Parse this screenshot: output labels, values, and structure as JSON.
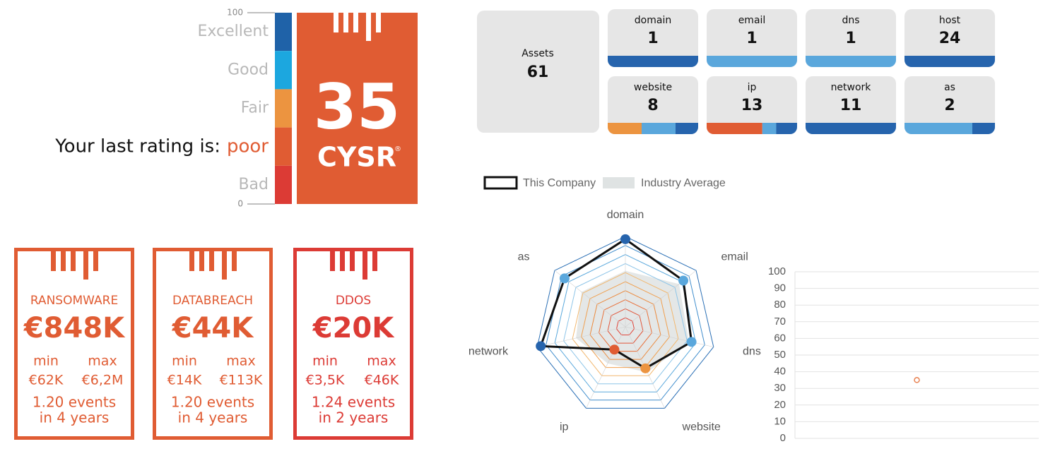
{
  "rating": {
    "prefix": "Your last rating is:",
    "label": "poor",
    "score": 35,
    "brand": "CYSR",
    "mark": "®",
    "color": "#e05c33",
    "scale": {
      "ylim": [
        0,
        100
      ],
      "yticks": [
        0,
        100
      ],
      "bands": [
        {
          "name": "Excellent",
          "color": "#1f62a8"
        },
        {
          "name": "Good",
          "color": "#1ca7df"
        },
        {
          "name": "Fair",
          "color": "#ec9440"
        },
        {
          "name": null,
          "color": "#e05c33"
        },
        {
          "name": "Bad",
          "color": "#dc3b35"
        }
      ]
    }
  },
  "risks": [
    {
      "title": "RANSOMWARE",
      "value": "€848K",
      "min_label": "min",
      "min": "€62K",
      "max_label": "max",
      "max": "€6,2M",
      "events": "1.20 events",
      "period": "in 4 years",
      "color": "#e05c33"
    },
    {
      "title": "DATABREACH",
      "value": "€44K",
      "min_label": "min",
      "min": "€14K",
      "max_label": "max",
      "max": "€113K",
      "events": "1.20 events",
      "period": "in 4 years",
      "color": "#e05c33"
    },
    {
      "title": "DDOS",
      "value": "€20K",
      "min_label": "min",
      "min": "€3,5K",
      "max_label": "max",
      "max": "€46K",
      "events": "1.24 events",
      "period": "in 2 years",
      "color": "#dc3b35"
    }
  ],
  "assets": {
    "total_label": "Assets",
    "total": 61,
    "tiles": [
      {
        "label": "domain",
        "count": 1,
        "bar": [
          {
            "color": "#2664ad",
            "weight": 1
          }
        ]
      },
      {
        "label": "email",
        "count": 1,
        "bar": [
          {
            "color": "#5aa7dc",
            "weight": 1
          }
        ]
      },
      {
        "label": "dns",
        "count": 1,
        "bar": [
          {
            "color": "#5aa7dc",
            "weight": 1
          }
        ]
      },
      {
        "label": "host",
        "count": 24,
        "bar": [
          {
            "color": "#2664ad",
            "weight": 1
          }
        ]
      },
      {
        "label": "website",
        "count": 8,
        "bar": [
          {
            "color": "#ec9440",
            "weight": 3
          },
          {
            "color": "#5aa7dc",
            "weight": 3
          },
          {
            "color": "#2664ad",
            "weight": 2
          }
        ]
      },
      {
        "label": "ip",
        "count": 13,
        "bar": [
          {
            "color": "#e05c33",
            "weight": 8
          },
          {
            "color": "#5aa7dc",
            "weight": 2
          },
          {
            "color": "#2664ad",
            "weight": 3
          }
        ]
      },
      {
        "label": "network",
        "count": 11,
        "bar": [
          {
            "color": "#2664ad",
            "weight": 1
          }
        ]
      },
      {
        "label": "as",
        "count": 2,
        "bar": [
          {
            "color": "#5aa7dc",
            "weight": 3
          },
          {
            "color": "#2664ad",
            "weight": 1
          }
        ]
      }
    ]
  },
  "chart_data": [
    {
      "type": "radar",
      "categories": [
        "domain",
        "email",
        "dns",
        "website",
        "ip",
        "network",
        "as"
      ],
      "rlim": [
        0,
        100
      ],
      "rticks": [
        10,
        20,
        30,
        40,
        50,
        60,
        70,
        80,
        90,
        100
      ],
      "ring_colors": [
        "#e0453a",
        "#e0553a",
        "#e8703a",
        "#eb8a3e",
        "#f0a050",
        "#f2b870",
        "#8ec5e8",
        "#5aa8dc",
        "#3e8ccc",
        "#2a6fb5"
      ],
      "legend": "top-left",
      "series": [
        {
          "name": "This Company",
          "color": "#111111",
          "values": [
            97,
            82,
            75,
            51,
            28,
            96,
            86
          ],
          "point_colors": [
            "#2664ad",
            "#5aa7dc",
            "#5aa7dc",
            "#ec9440",
            "#e05c33",
            "#2664ad",
            "#5aa7dc"
          ]
        },
        {
          "name": "Industry Average",
          "color": "#dfe3e3",
          "values": [
            62,
            76,
            72,
            56,
            45,
            56,
            62
          ]
        }
      ]
    },
    {
      "type": "line",
      "categories": [
        null
      ],
      "values": [
        35
      ],
      "color": "#e8804f",
      "marker": true,
      "ylim": [
        0,
        100
      ],
      "yticks": [
        0,
        10,
        20,
        30,
        40,
        50,
        60,
        70,
        80,
        90,
        100
      ],
      "grid": true
    }
  ]
}
